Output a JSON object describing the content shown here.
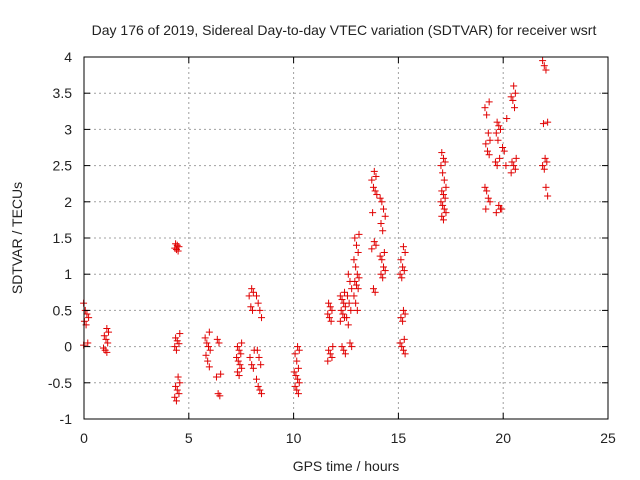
{
  "chart_data": {
    "type": "scatter",
    "title": "Day 176 of 2019, Sidereal Day-to-day VTEC variation (SDTVAR) for receiver wsrt",
    "xlabel": "GPS time / hours",
    "ylabel": "SDTVAR / TECUs",
    "xlim": [
      0,
      25
    ],
    "ylim": [
      -1,
      4
    ],
    "xticks": [
      "0",
      "5",
      "10",
      "15",
      "20",
      "25"
    ],
    "yticks": [
      "-1",
      "-0.5",
      "0",
      "0.5",
      "1",
      "1.5",
      "2",
      "2.5",
      "3",
      "3.5",
      "4"
    ],
    "grid": true,
    "marker": "plus",
    "color": "#e00000",
    "clusters": [
      {
        "x": 0.1,
        "y": [
          0.6,
          0.5,
          0.45,
          0.4,
          0.35,
          0.3,
          0.05,
          0.02
        ]
      },
      {
        "x": 1.05,
        "y": [
          0.25,
          0.2,
          0.15,
          0.1,
          0.05,
          -0.02,
          -0.05,
          -0.08
        ]
      },
      {
        "x": 4.45,
        "y": [
          1.42,
          1.4,
          1.38,
          1.36,
          1.34,
          1.32,
          0.18,
          0.12,
          0.08,
          0.04,
          0.0,
          -0.05,
          -0.42,
          -0.5,
          -0.55,
          -0.6,
          -0.65,
          -0.7,
          -0.75
        ]
      },
      {
        "x": 5.9,
        "y": [
          0.2,
          0.12,
          0.05,
          0.0,
          -0.05,
          -0.12,
          -0.2,
          -0.28
        ]
      },
      {
        "x": 6.4,
        "y": [
          0.1,
          0.05,
          -0.38,
          -0.42,
          -0.65,
          -0.68
        ]
      },
      {
        "x": 7.4,
        "y": [
          0.05,
          0.0,
          -0.05,
          -0.1,
          -0.15,
          -0.2,
          -0.25,
          -0.3,
          -0.35,
          -0.4
        ]
      },
      {
        "x": 8.0,
        "y": [
          0.8,
          0.75,
          0.7,
          0.55,
          0.5,
          -0.05,
          -0.15,
          -0.25,
          -0.3
        ]
      },
      {
        "x": 8.35,
        "y": [
          0.7,
          0.6,
          0.5,
          0.4,
          -0.05,
          -0.15,
          -0.25,
          -0.45,
          -0.55,
          -0.6,
          -0.65
        ]
      },
      {
        "x": 10.15,
        "y": [
          0.0,
          -0.05,
          -0.1,
          -0.2,
          -0.3,
          -0.35,
          -0.4,
          -0.45,
          -0.5,
          -0.55,
          -0.6,
          -0.65
        ]
      },
      {
        "x": 11.75,
        "y": [
          0.6,
          0.55,
          0.5,
          0.45,
          0.4,
          0.35,
          0.0,
          -0.05,
          -0.1,
          -0.15,
          -0.2
        ]
      },
      {
        "x": 12.35,
        "y": [
          0.75,
          0.7,
          0.65,
          0.6,
          0.55,
          0.5,
          0.45,
          0.4,
          0.35,
          0.0,
          -0.05,
          -0.1
        ]
      },
      {
        "x": 12.65,
        "y": [
          1.0,
          0.9,
          0.8,
          0.7,
          0.6,
          0.5,
          0.4,
          0.3,
          0.05,
          0.0
        ]
      },
      {
        "x": 13.0,
        "y": [
          1.55,
          1.5,
          1.4,
          1.3,
          1.2,
          1.1,
          1.0,
          0.95,
          0.9,
          0.85,
          0.8,
          0.7,
          0.6,
          0.5
        ]
      },
      {
        "x": 13.85,
        "y": [
          2.42,
          2.35,
          2.3,
          2.2,
          2.15,
          2.1,
          1.85,
          1.45,
          1.4,
          1.35,
          0.8,
          0.75
        ]
      },
      {
        "x": 14.25,
        "y": [
          2.05,
          2.0,
          1.9,
          1.8,
          1.7,
          1.6,
          1.3,
          1.25,
          1.2,
          1.1,
          1.05,
          1.0,
          0.95
        ]
      },
      {
        "x": 15.2,
        "y": [
          1.38,
          1.3,
          1.2,
          1.1,
          1.05,
          1.0,
          0.95,
          0.5,
          0.45,
          0.4,
          0.35,
          0.1,
          0.05,
          0.0,
          -0.05,
          -0.1
        ]
      },
      {
        "x": 17.15,
        "y": [
          2.68,
          2.6,
          2.55,
          2.5,
          2.4,
          2.3,
          2.2,
          2.15,
          2.1,
          2.05,
          2.0,
          1.95,
          1.9,
          1.85,
          1.8,
          1.75
        ]
      },
      {
        "x": 19.25,
        "y": [
          3.38,
          3.3,
          3.2,
          2.95,
          2.85,
          2.8,
          2.7,
          2.65,
          2.2,
          2.15,
          2.05,
          2.0,
          1.9
        ]
      },
      {
        "x": 19.75,
        "y": [
          3.1,
          3.05,
          3.0,
          2.95,
          2.85,
          2.6,
          2.55,
          2.5,
          1.95,
          1.9,
          1.85
        ]
      },
      {
        "x": 20.05,
        "y": [
          3.15,
          2.75,
          2.7,
          2.5,
          1.9
        ]
      },
      {
        "x": 20.5,
        "y": [
          3.6,
          3.5,
          3.45,
          3.4,
          3.3,
          2.6,
          2.55,
          2.5,
          2.45,
          2.4
        ]
      },
      {
        "x": 22.0,
        "y": [
          3.95,
          3.88,
          3.82,
          3.1,
          3.08,
          2.6,
          2.55,
          2.5,
          2.45,
          2.2,
          2.08
        ]
      }
    ]
  }
}
